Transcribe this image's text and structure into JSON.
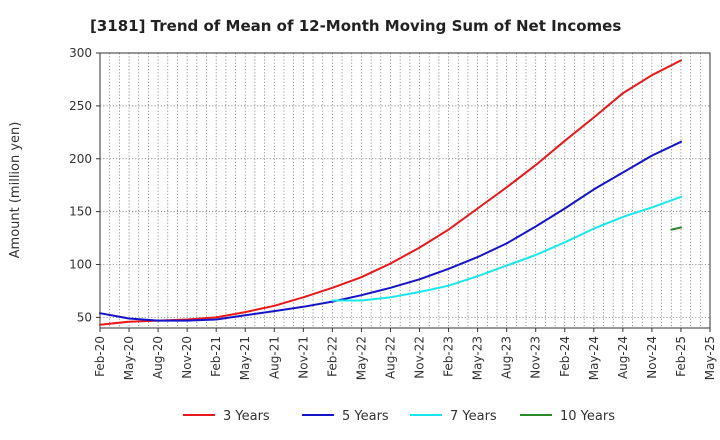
{
  "chart_data": {
    "type": "line",
    "title": "[3181]  Trend of Mean of 12-Month Moving Sum of Net Incomes",
    "xlabel": "",
    "ylabel": "Amount (million yen)",
    "ylim": [
      40,
      300
    ],
    "yticks": [
      50,
      100,
      150,
      200,
      250,
      300
    ],
    "xticks": [
      "Feb-20",
      "May-20",
      "Aug-20",
      "Nov-20",
      "Feb-21",
      "May-21",
      "Aug-21",
      "Nov-21",
      "Feb-22",
      "May-22",
      "Aug-22",
      "Nov-22",
      "Feb-23",
      "May-23",
      "Aug-23",
      "Nov-23",
      "Feb-24",
      "May-24",
      "Aug-24",
      "Nov-24",
      "Feb-25",
      "May-25"
    ],
    "grid": true,
    "legend_position": "bottom",
    "series": [
      {
        "name": "3 Years",
        "color": "#e8191a",
        "x": [
          "Feb-20",
          "May-20",
          "Aug-20",
          "Nov-20",
          "Feb-21",
          "May-21",
          "Aug-21",
          "Nov-21",
          "Feb-22",
          "May-22",
          "Aug-22",
          "Nov-22",
          "Feb-23",
          "May-23",
          "Aug-23",
          "Nov-23",
          "Feb-24",
          "May-24",
          "Aug-24",
          "Nov-24",
          "Feb-25"
        ],
        "values": [
          43,
          46,
          47,
          48,
          50,
          55,
          61,
          69,
          78,
          88,
          101,
          116,
          133,
          153,
          173,
          194,
          217,
          239,
          262,
          279,
          293
        ]
      },
      {
        "name": "5 Years",
        "color": "#1414c8",
        "x": [
          "Feb-20",
          "May-20",
          "Aug-20",
          "Nov-20",
          "Feb-21",
          "May-21",
          "Aug-21",
          "Nov-21",
          "Feb-22",
          "May-22",
          "Aug-22",
          "Nov-22",
          "Feb-23",
          "May-23",
          "Aug-23",
          "Nov-23",
          "Feb-24",
          "May-24",
          "Aug-24",
          "Nov-24",
          "Feb-25"
        ],
        "values": [
          54,
          49,
          47,
          47,
          48,
          52,
          56,
          60,
          65,
          71,
          78,
          86,
          96,
          107,
          120,
          136,
          153,
          171,
          187,
          203,
          216
        ]
      },
      {
        "name": "7 Years",
        "color": "#18e8ec",
        "x": [
          "Feb-22",
          "May-22",
          "Aug-22",
          "Nov-22",
          "Feb-23",
          "May-23",
          "Aug-23",
          "Nov-23",
          "Feb-24",
          "May-24",
          "Aug-24",
          "Nov-24",
          "Feb-25"
        ],
        "values": [
          66,
          66,
          69,
          74,
          80,
          89,
          99,
          109,
          121,
          134,
          145,
          154,
          164
        ]
      },
      {
        "name": "10 Years",
        "color": "#2a8a2a",
        "x": [
          "Jan-25",
          "Feb-25"
        ],
        "values": [
          133,
          135
        ]
      }
    ]
  }
}
